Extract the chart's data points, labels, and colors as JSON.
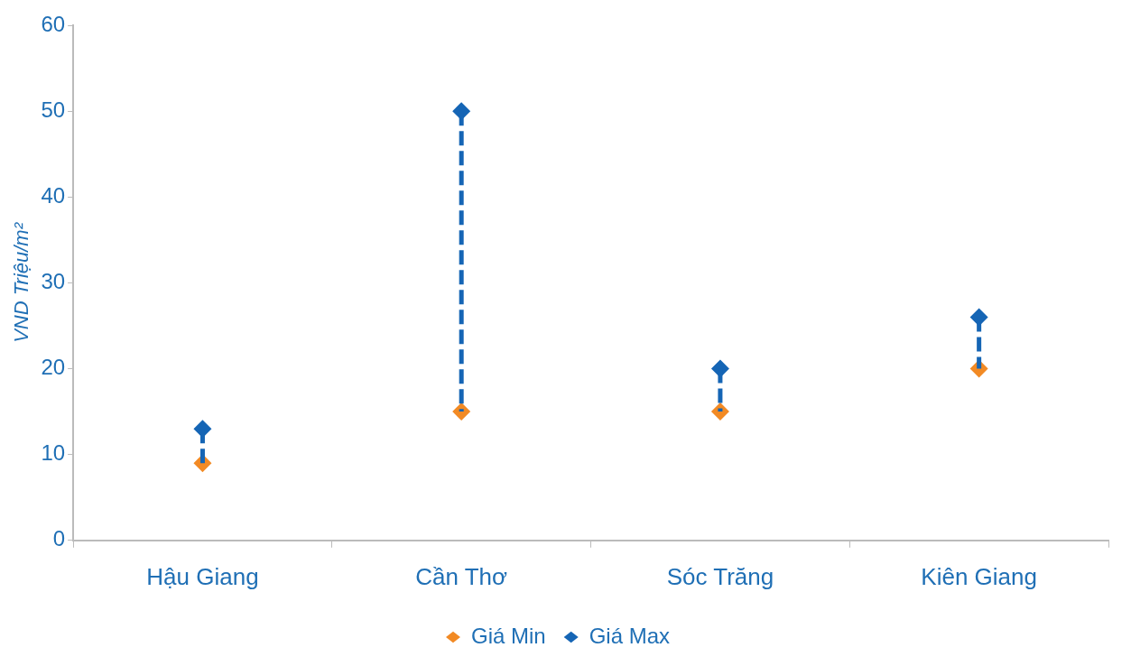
{
  "chart_data": {
    "type": "scatter",
    "ylabel": "VND Triệu/m²",
    "categories": [
      "Hậu Giang",
      "Cần Thơ",
      "Sóc Trăng",
      "Kiên Giang"
    ],
    "series": [
      {
        "name": "Giá Min",
        "color": "#f28a24",
        "values": [
          9,
          15,
          15,
          20
        ]
      },
      {
        "name": "Giá Max",
        "color": "#1565b5",
        "values": [
          13,
          50,
          20,
          26
        ],
        "errors": [
          [
            9,
            13
          ],
          [
            15,
            50
          ],
          [
            15,
            20
          ],
          [
            20,
            26
          ]
        ],
        "line_style": "dashed"
      }
    ],
    "ylim": [
      0,
      60
    ],
    "yticks": [
      0,
      10,
      20,
      30,
      40,
      50,
      60
    ],
    "grid": false,
    "legend": "bottom",
    "marker": "diamond"
  }
}
